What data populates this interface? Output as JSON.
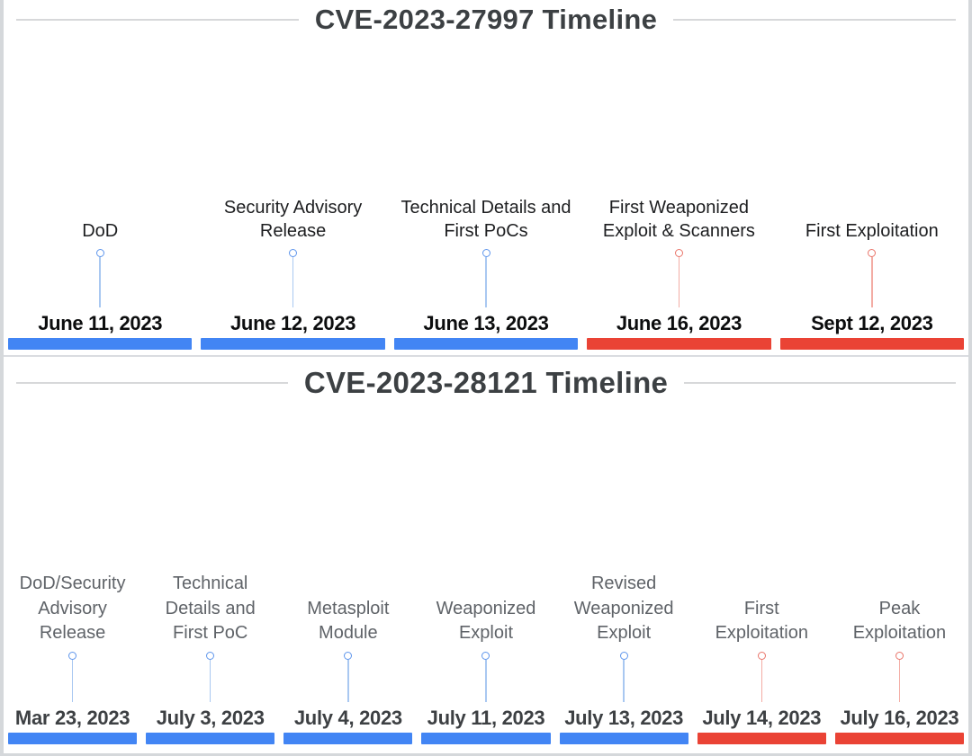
{
  "colors": {
    "blue": {
      "main": "#4285F4",
      "stem": "#A9C8F1",
      "dot": "#5F96EC"
    },
    "red": {
      "main": "#EA4335",
      "stem": "#F3ACA4",
      "dot": "#E9756A"
    },
    "title": "#3c4043",
    "flank_line": "#d7d8da"
  },
  "timelines": [
    {
      "title": "CVE-2023-27997 Timeline",
      "events": [
        {
          "label": "DoD",
          "date": "June 11, 2023",
          "color": "blue"
        },
        {
          "label": "Security Advisory Release",
          "date": "June 12, 2023",
          "color": "blue"
        },
        {
          "label": "Technical Details and First PoCs",
          "date": "June 13, 2023",
          "color": "blue"
        },
        {
          "label": "First Weaponized Exploit & Scanners",
          "date": "June 16, 2023",
          "color": "red"
        },
        {
          "label": "First Exploitation",
          "date": "Sept 12, 2023",
          "color": "red"
        }
      ]
    },
    {
      "title": "CVE-2023-28121 Timeline",
      "events": [
        {
          "label": "DoD/Security Advisory Release",
          "date": "Mar 23, 2023",
          "color": "blue"
        },
        {
          "label": "Technical Details and First PoC",
          "date": "July 3, 2023",
          "color": "blue"
        },
        {
          "label": "Metasploit Module",
          "date": "July 4, 2023",
          "color": "blue"
        },
        {
          "label": "Weaponized Exploit",
          "date": "July 11, 2023",
          "color": "blue"
        },
        {
          "label": "Revised Weaponized Exploit",
          "date": "July 13, 2023",
          "color": "blue"
        },
        {
          "label": "First Exploitation",
          "date": "July 14, 2023",
          "color": "red"
        },
        {
          "label": "Peak Exploitation",
          "date": "July 16, 2023",
          "color": "red"
        }
      ]
    }
  ]
}
